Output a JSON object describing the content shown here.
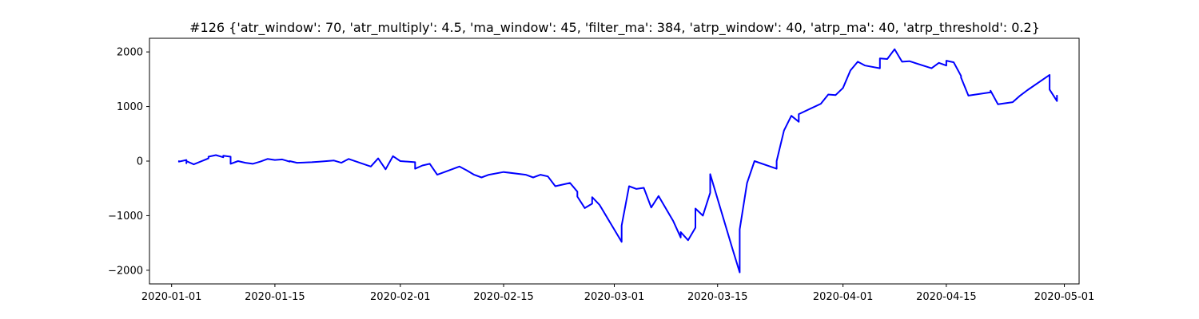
{
  "chart_data": {
    "type": "line",
    "title": "#126 {'atr_window': 70, 'atr_multiply': 4.5, 'ma_window': 45, 'filter_ma': 384, 'atrp_window': 40, 'atrp_ma': 40, 'atrp_threshold': 0.2}",
    "xlabel": "",
    "ylabel": "",
    "x_type": "date",
    "xlim": [
      "2019-12-29",
      "2020-05-03"
    ],
    "ylim": [
      -2250,
      2250
    ],
    "x_ticks": [
      "2020-01-01",
      "2020-01-15",
      "2020-02-01",
      "2020-02-15",
      "2020-03-01",
      "2020-03-15",
      "2020-04-01",
      "2020-04-15",
      "2020-05-01"
    ],
    "y_ticks": [
      -2000,
      -1000,
      0,
      1000,
      2000
    ],
    "grid": false,
    "colors": {
      "series": "#0000ff",
      "axis": "#000000",
      "background": "#ffffff"
    },
    "series": [
      {
        "color": "#0000ff",
        "x": [
          "2020-01-02",
          "2020-01-02",
          "2020-01-03",
          "2020-01-03",
          "2020-01-03",
          "2020-01-04",
          "2020-01-06",
          "2020-01-06",
          "2020-01-07",
          "2020-01-08",
          "2020-01-08",
          "2020-01-09",
          "2020-01-09",
          "2020-01-10",
          "2020-01-11",
          "2020-01-12",
          "2020-01-13",
          "2020-01-14",
          "2020-01-15",
          "2020-01-16",
          "2020-01-17",
          "2020-01-17",
          "2020-01-18",
          "2020-01-20",
          "2020-01-21",
          "2020-01-22",
          "2020-01-23",
          "2020-01-24",
          "2020-01-25",
          "2020-01-28",
          "2020-01-29",
          "2020-01-30",
          "2020-01-31",
          "2020-02-01",
          "2020-02-03",
          "2020-02-03",
          "2020-02-04",
          "2020-02-05",
          "2020-02-06",
          "2020-02-07",
          "2020-02-09",
          "2020-02-10",
          "2020-02-11",
          "2020-02-12",
          "2020-02-13",
          "2020-02-15",
          "2020-02-18",
          "2020-02-19",
          "2020-02-20",
          "2020-02-21",
          "2020-02-22",
          "2020-02-24",
          "2020-02-25",
          "2020-02-25",
          "2020-02-26",
          "2020-02-27",
          "2020-02-27",
          "2020-02-28",
          "2020-03-02",
          "2020-03-02",
          "2020-03-03",
          "2020-03-04",
          "2020-03-05",
          "2020-03-06",
          "2020-03-07",
          "2020-03-09",
          "2020-03-10",
          "2020-03-10",
          "2020-03-11",
          "2020-03-12",
          "2020-03-12",
          "2020-03-13",
          "2020-03-14",
          "2020-03-14",
          "2020-03-17",
          "2020-03-18",
          "2020-03-18",
          "2020-03-19",
          "2020-03-20",
          "2020-03-23",
          "2020-03-23",
          "2020-03-24",
          "2020-03-25",
          "2020-03-26",
          "2020-03-26",
          "2020-03-29",
          "2020-03-30",
          "2020-03-31",
          "2020-04-01",
          "2020-04-02",
          "2020-04-03",
          "2020-04-04",
          "2020-04-06",
          "2020-04-06",
          "2020-04-07",
          "2020-04-08",
          "2020-04-09",
          "2020-04-10",
          "2020-04-13",
          "2020-04-14",
          "2020-04-15",
          "2020-04-15",
          "2020-04-16",
          "2020-04-17",
          "2020-04-17",
          "2020-04-18",
          "2020-04-21",
          "2020-04-21",
          "2020-04-22",
          "2020-04-24",
          "2020-04-25",
          "2020-04-26",
          "2020-04-29",
          "2020-04-29",
          "2020-04-30",
          "2020-04-30",
          "2020-04-30"
        ],
        "y": [
          0,
          -10,
          20,
          -40,
          0,
          -60,
          50,
          80,
          110,
          70,
          100,
          80,
          -50,
          0,
          -30,
          -50,
          -10,
          40,
          20,
          30,
          -10,
          0,
          -30,
          -20,
          -10,
          0,
          10,
          -30,
          40,
          -100,
          50,
          -150,
          90,
          0,
          -20,
          -140,
          -80,
          -50,
          -250,
          -200,
          -100,
          -170,
          -250,
          -300,
          -250,
          -200,
          -250,
          -300,
          -250,
          -280,
          -460,
          -400,
          -560,
          -650,
          -860,
          -780,
          -660,
          -800,
          -1480,
          -1180,
          -460,
          -510,
          -490,
          -850,
          -640,
          -1100,
          -1400,
          -1300,
          -1450,
          -1220,
          -870,
          -1000,
          -580,
          -240,
          -1600,
          -2040,
          -1250,
          -400,
          0,
          -140,
          0,
          560,
          830,
          720,
          860,
          1050,
          1220,
          1210,
          1340,
          1660,
          1820,
          1750,
          1700,
          1880,
          1870,
          2050,
          1820,
          1830,
          1700,
          1800,
          1750,
          1840,
          1810,
          1560,
          1530,
          1200,
          1260,
          1290,
          1040,
          1080,
          1200,
          1300,
          1580,
          1310,
          1100,
          1200,
          1130
        ]
      }
    ]
  }
}
